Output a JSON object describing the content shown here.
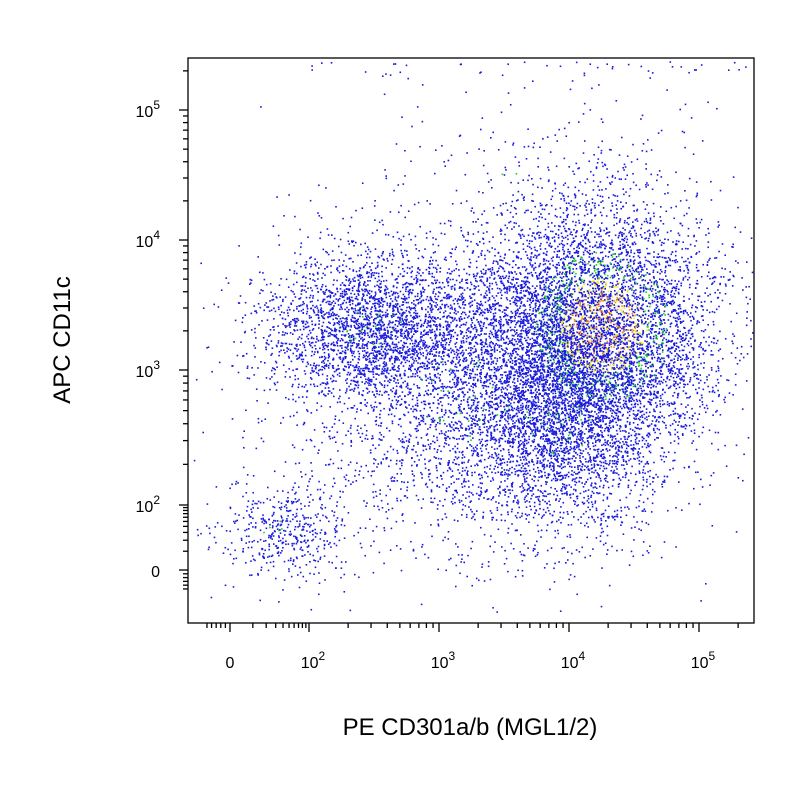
{
  "chart_data": {
    "type": "scatter",
    "xlabel": "PE CD301a/b (MGL1/2)",
    "ylabel": "APC CD11c",
    "scale": "biexponential",
    "x_ticks": [
      {
        "value": 0,
        "base": "0",
        "exp": ""
      },
      {
        "value": 100,
        "base": "10",
        "exp": "2"
      },
      {
        "value": 1000,
        "base": "10",
        "exp": "3"
      },
      {
        "value": 10000,
        "base": "10",
        "exp": "4"
      },
      {
        "value": 100000,
        "base": "10",
        "exp": "5"
      }
    ],
    "y_ticks": [
      {
        "value": 0,
        "base": "0",
        "exp": ""
      },
      {
        "value": 100,
        "base": "10",
        "exp": "2"
      },
      {
        "value": 1000,
        "base": "10",
        "exp": "3"
      },
      {
        "value": 10000,
        "base": "10",
        "exp": "4"
      },
      {
        "value": 100000,
        "base": "10",
        "exp": "5"
      }
    ],
    "xlim": [
      -60,
      230000
    ],
    "ylim": [
      -60,
      230000
    ],
    "colors": {
      "low": "#1a1adc",
      "mid": "#19d419",
      "high_yellow": "#f2e81e",
      "high_orange": "#f08c1e",
      "peak": "#e81e1e"
    },
    "populations": [
      {
        "name_hidden": true,
        "x_center": 15000,
        "y_center": 2200,
        "spread": "high density"
      },
      {
        "name_hidden": true,
        "x_center": 300,
        "y_center": 2000,
        "spread": "medium density"
      },
      {
        "name_hidden": true,
        "x_center": 40,
        "y_center": 30,
        "spread": "low density"
      }
    ],
    "grid": false,
    "legend": "none"
  }
}
